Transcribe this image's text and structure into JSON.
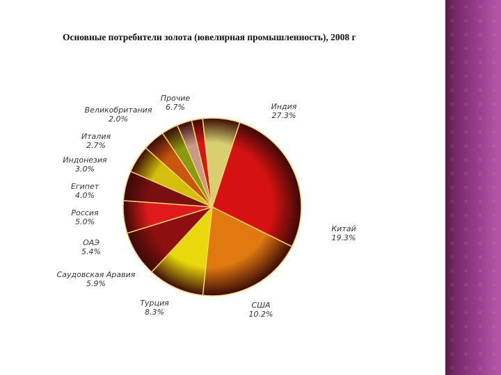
{
  "slide": {
    "title": "Основные потребители золота (ювелирная промышленность), 2008 г"
  },
  "colors": {
    "side_panel": "#7a2a6a",
    "slices": [
      "#d41212",
      "#e07a10",
      "#e8d80c",
      "#8c1010",
      "#e01a1a",
      "#781010",
      "#d4c00c",
      "#c8560e",
      "#8a9a10",
      "#c89888",
      "#d41818",
      "#d8d070"
    ]
  },
  "chart_data": {
    "type": "pie",
    "title": "Основные потребители золота (ювелирная промышленность), 2008 г",
    "slices": [
      {
        "label": "Индия",
        "value": 27.3,
        "value_label": "27.3%"
      },
      {
        "label": "Китай",
        "value": 19.3,
        "value_label": "19.3%"
      },
      {
        "label": "США",
        "value": 10.2,
        "value_label": "10.2%"
      },
      {
        "label": "Турция",
        "value": 8.3,
        "value_label": "8.3%"
      },
      {
        "label": "Саудовская Аравия",
        "value": 5.9,
        "value_label": "5.9%"
      },
      {
        "label": "ОАЭ",
        "value": 5.4,
        "value_label": "5.4%"
      },
      {
        "label": "Россия",
        "value": 5.0,
        "value_label": "5.0%"
      },
      {
        "label": "Египет",
        "value": 4.0,
        "value_label": "4.0%"
      },
      {
        "label": "Индонезия",
        "value": 3.0,
        "value_label": "3.0%"
      },
      {
        "label": "Италия",
        "value": 2.7,
        "value_label": "2.7%"
      },
      {
        "label": "Великобритания",
        "value": 2.0,
        "value_label": "2.0%"
      },
      {
        "label": "Прочие",
        "value": 6.7,
        "value_label": "6.7%"
      }
    ]
  }
}
